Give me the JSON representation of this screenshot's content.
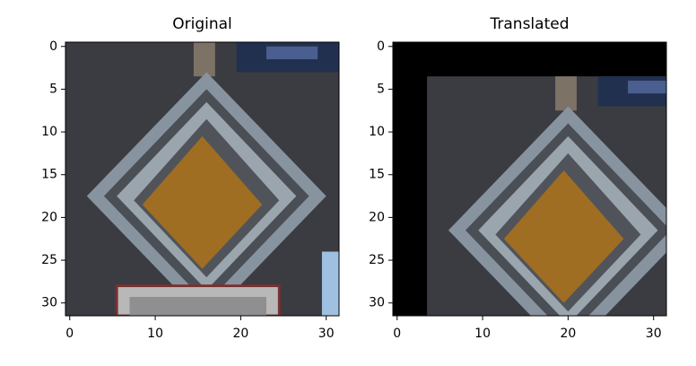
{
  "chart_data": [
    {
      "type": "image",
      "title": "Original",
      "xlim": [
        -0.5,
        31.5
      ],
      "ylim": [
        31.5,
        -0.5
      ],
      "xticks": [
        0,
        10,
        20,
        30
      ],
      "yticks": [
        0,
        5,
        10,
        15,
        20,
        25,
        30
      ]
    },
    {
      "type": "image",
      "title": "Translated",
      "xlim": [
        -0.5,
        31.5
      ],
      "ylim": [
        31.5,
        -0.5
      ],
      "xticks": [
        0,
        10,
        20,
        30
      ],
      "yticks": [
        0,
        5,
        10,
        15,
        20,
        25,
        30
      ]
    }
  ]
}
